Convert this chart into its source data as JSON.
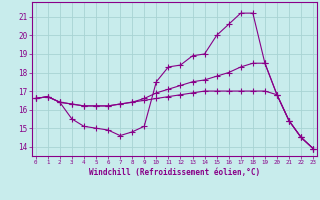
{
  "line1_x": [
    0,
    1,
    2,
    3,
    4,
    5,
    6,
    7,
    8,
    9,
    10,
    11,
    12,
    13,
    14,
    15,
    16,
    17,
    18,
    19,
    20,
    21,
    22,
    23
  ],
  "line1_y": [
    16.6,
    16.7,
    16.4,
    15.5,
    15.1,
    15.0,
    14.9,
    14.6,
    14.8,
    15.1,
    17.5,
    18.3,
    18.4,
    18.9,
    19.0,
    20.0,
    20.6,
    21.2,
    21.2,
    18.5,
    16.8,
    15.4,
    14.5,
    13.9
  ],
  "line2_x": [
    0,
    1,
    2,
    3,
    4,
    5,
    6,
    7,
    8,
    9,
    10,
    11,
    12,
    13,
    14,
    15,
    16,
    17,
    18,
    19,
    20,
    21,
    22,
    23
  ],
  "line2_y": [
    16.6,
    16.7,
    16.4,
    16.3,
    16.2,
    16.2,
    16.2,
    16.3,
    16.4,
    16.6,
    16.9,
    17.1,
    17.3,
    17.5,
    17.6,
    17.8,
    18.0,
    18.3,
    18.5,
    18.5,
    16.8,
    15.4,
    14.5,
    13.9
  ],
  "line3_x": [
    0,
    1,
    2,
    3,
    4,
    5,
    6,
    7,
    8,
    9,
    10,
    11,
    12,
    13,
    14,
    15,
    16,
    17,
    18,
    19,
    20,
    21,
    22,
    23
  ],
  "line3_y": [
    16.6,
    16.7,
    16.4,
    16.3,
    16.2,
    16.2,
    16.2,
    16.3,
    16.4,
    16.5,
    16.6,
    16.7,
    16.8,
    16.9,
    17.0,
    17.0,
    17.0,
    17.0,
    17.0,
    17.0,
    16.8,
    15.4,
    14.5,
    13.9
  ],
  "line_color": "#880088",
  "background_color": "#c8ecec",
  "grid_color": "#a8d4d4",
  "ylabel_values": [
    14,
    15,
    16,
    17,
    18,
    19,
    20,
    21
  ],
  "xlabel_values": [
    0,
    1,
    2,
    3,
    4,
    5,
    6,
    7,
    8,
    9,
    10,
    11,
    12,
    13,
    14,
    15,
    16,
    17,
    18,
    19,
    20,
    21,
    22,
    23
  ],
  "ylim": [
    13.5,
    21.8
  ],
  "xlim": [
    -0.3,
    23.3
  ],
  "xlabel": "Windchill (Refroidissement éolien,°C)",
  "tick_color": "#880088",
  "marker": "+",
  "markersize": 4,
  "linewidth": 0.8
}
